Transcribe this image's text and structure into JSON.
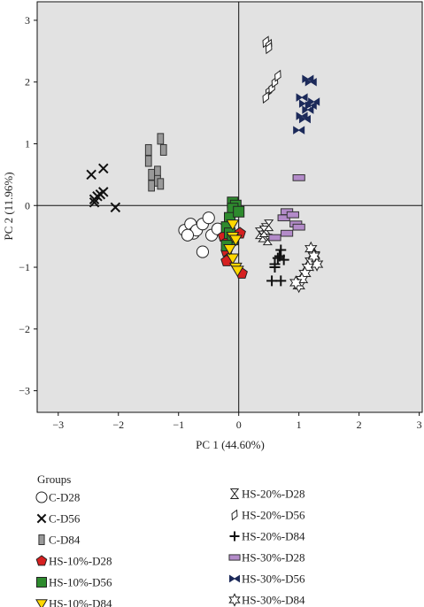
{
  "chart_data": {
    "type": "scatter",
    "xlabel": "PC 1 (44.60%)",
    "ylabel": "PC 2 (11.96%)",
    "xlim": [
      -3.35,
      3.05
    ],
    "ylim": [
      -3.35,
      3.3
    ],
    "xticks": [
      "−3",
      "−2",
      "−1",
      "0",
      "1",
      "2",
      "3"
    ],
    "yticks": [
      "3",
      "2",
      "1",
      "0",
      "−1",
      "−2",
      "−3"
    ],
    "xtick_values": [
      -3,
      -2,
      -1,
      0,
      1,
      2,
      3
    ],
    "ytick_values": [
      3,
      2,
      1,
      0,
      -1,
      -2,
      -3
    ],
    "grid": false,
    "zero_lines": true,
    "background": "#e2e2e2",
    "legend_title": "Groups",
    "legend_placement": "bottom",
    "series": [
      {
        "name": "C-D28",
        "marker": "circle",
        "fill": "#ffffff",
        "stroke": "#222222",
        "points": [
          [
            -0.9,
            -0.4
          ],
          [
            -0.8,
            -0.3
          ],
          [
            -0.75,
            -0.45
          ],
          [
            -0.7,
            -0.4
          ],
          [
            -0.6,
            -0.3
          ],
          [
            -0.5,
            -0.2
          ],
          [
            -0.85,
            -0.48
          ],
          [
            -0.6,
            -0.75
          ],
          [
            -0.45,
            -0.48
          ],
          [
            -0.35,
            -0.38
          ]
        ]
      },
      {
        "name": "C-D56",
        "marker": "x",
        "fill": "none",
        "stroke": "#111111",
        "points": [
          [
            -2.45,
            0.5
          ],
          [
            -2.25,
            0.6
          ],
          [
            -2.4,
            0.1
          ],
          [
            -2.35,
            0.15
          ],
          [
            -2.3,
            0.18
          ],
          [
            -2.25,
            0.22
          ],
          [
            -2.05,
            -0.03
          ],
          [
            -2.4,
            0.05
          ]
        ]
      },
      {
        "name": "C-D84",
        "marker": "rect",
        "fill": "#999999",
        "stroke": "#333333",
        "points": [
          [
            -1.5,
            0.9
          ],
          [
            -1.5,
            0.72
          ],
          [
            -1.45,
            0.5
          ],
          [
            -1.45,
            0.32
          ],
          [
            -1.35,
            0.55
          ],
          [
            -1.35,
            0.4
          ],
          [
            -1.3,
            1.08
          ],
          [
            -1.3,
            0.35
          ],
          [
            -1.25,
            0.9
          ]
        ]
      },
      {
        "name": "HS-10%-D28",
        "marker": "pentagon",
        "fill": "#d62020",
        "stroke": "#222222",
        "points": [
          [
            -0.25,
            -0.5
          ],
          [
            -0.2,
            -0.6
          ],
          [
            -0.2,
            -0.75
          ],
          [
            -0.15,
            -0.85
          ],
          [
            -0.2,
            -0.9
          ],
          [
            -0.1,
            -0.5
          ],
          [
            0.02,
            -0.45
          ],
          [
            0.05,
            -1.1
          ]
        ]
      },
      {
        "name": "HS-10%-D56",
        "marker": "square",
        "fill": "#2e8b2e",
        "stroke": "#222222",
        "points": [
          [
            -0.1,
            0.05
          ],
          [
            -0.05,
            0.0
          ],
          [
            -0.1,
            -0.05
          ],
          [
            -0.15,
            -0.2
          ],
          [
            -0.2,
            -0.35
          ],
          [
            -0.15,
            -0.45
          ],
          [
            -0.1,
            -0.55
          ],
          [
            -0.2,
            -0.65
          ],
          [
            0.0,
            -0.1
          ]
        ]
      },
      {
        "name": "HS-10%-D84",
        "marker": "triangle-down",
        "fill": "#ffd700",
        "stroke": "#222222",
        "points": [
          [
            -0.1,
            -0.3
          ],
          [
            -0.1,
            -0.5
          ],
          [
            -0.05,
            -0.55
          ],
          [
            -0.1,
            -0.85
          ],
          [
            -0.05,
            -1.0
          ],
          [
            -0.02,
            -1.05
          ],
          [
            -0.15,
            -0.7
          ]
        ]
      },
      {
        "name": "HS-20%-D28",
        "marker": "hourglass",
        "fill": "#ffffff",
        "stroke": "#222222",
        "points": [
          [
            0.35,
            -0.45
          ],
          [
            0.4,
            -0.5
          ],
          [
            0.45,
            -0.38
          ],
          [
            0.5,
            -0.32
          ],
          [
            0.48,
            -0.55
          ],
          [
            0.42,
            -0.42
          ]
        ]
      },
      {
        "name": "HS-20%-D56",
        "marker": "diamond",
        "fill": "#ffffff",
        "stroke": "#222222",
        "points": [
          [
            0.45,
            2.65
          ],
          [
            0.5,
            2.6
          ],
          [
            0.5,
            2.55
          ],
          [
            0.5,
            1.85
          ],
          [
            0.55,
            1.9
          ],
          [
            0.6,
            2.0
          ],
          [
            0.65,
            2.1
          ],
          [
            0.45,
            1.75
          ]
        ]
      },
      {
        "name": "HS-20%-D84",
        "marker": "plus",
        "fill": "none",
        "stroke": "#111111",
        "points": [
          [
            0.55,
            -1.22
          ],
          [
            0.6,
            -0.95
          ],
          [
            0.65,
            -0.85
          ],
          [
            0.7,
            -0.72
          ],
          [
            0.75,
            -0.88
          ],
          [
            0.7,
            -1.22
          ],
          [
            0.6,
            -1.0
          ],
          [
            0.68,
            -0.82
          ]
        ]
      },
      {
        "name": "HS-30%-D28",
        "marker": "rect-h",
        "fill": "#b38bc9",
        "stroke": "#333333",
        "points": [
          [
            0.75,
            -0.2
          ],
          [
            0.8,
            -0.1
          ],
          [
            0.9,
            -0.15
          ],
          [
            0.95,
            -0.3
          ],
          [
            1.0,
            -0.35
          ],
          [
            0.8,
            -0.45
          ],
          [
            0.6,
            -0.52
          ],
          [
            1.0,
            0.45
          ]
        ]
      },
      {
        "name": "HS-30%-D56",
        "marker": "bowtie",
        "fill": "#1c2a5a",
        "stroke": "#1c2a5a",
        "points": [
          [
            1.05,
            1.75
          ],
          [
            1.15,
            2.05
          ],
          [
            1.2,
            2.0
          ],
          [
            1.1,
            1.65
          ],
          [
            1.2,
            1.62
          ],
          [
            1.25,
            1.68
          ],
          [
            1.05,
            1.45
          ],
          [
            1.1,
            1.4
          ],
          [
            1.0,
            1.22
          ],
          [
            1.15,
            1.55
          ]
        ]
      },
      {
        "name": "HS-30%-D84",
        "marker": "star",
        "fill": "#ffffff",
        "stroke": "#222222",
        "points": [
          [
            1.2,
            -0.7
          ],
          [
            1.25,
            -0.8
          ],
          [
            1.2,
            -0.9
          ],
          [
            1.15,
            -1.0
          ],
          [
            1.1,
            -1.1
          ],
          [
            1.05,
            -1.2
          ],
          [
            1.0,
            -1.3
          ],
          [
            1.3,
            -0.95
          ],
          [
            1.25,
            -0.82
          ],
          [
            0.95,
            -1.25
          ]
        ]
      }
    ]
  }
}
